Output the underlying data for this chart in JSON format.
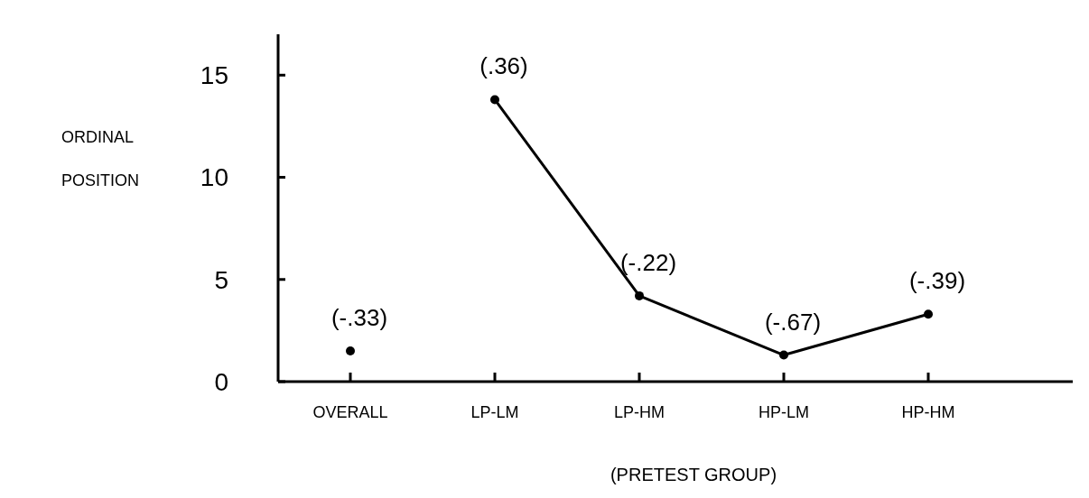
{
  "chart_data": {
    "type": "line",
    "xlabel": "(PRETEST GROUP)",
    "ylabel": "ORDINAL POSITION",
    "categories": [
      "OVERALL",
      "LP-LM",
      "LP-HM",
      "HP-LM",
      "HP-HM"
    ],
    "series": [
      {
        "type": "scatter",
        "color": "#000000",
        "values": [
          1.5,
          null,
          null,
          null,
          null
        ]
      },
      {
        "color": "#000000",
        "values": [
          null,
          13.8,
          4.2,
          1.3,
          3.3
        ]
      }
    ],
    "ylim": [
      0,
      17
    ],
    "yticks": [
      0,
      5,
      10,
      15
    ],
    "grid": false,
    "marker": "circle",
    "line_style": "solid",
    "annotations": [
      {
        "text": "(-.33)",
        "x": "OVERALL",
        "y": 1.5
      },
      {
        "text": "(.36)",
        "x": "LP-LM",
        "y": 13.8
      },
      {
        "text": "(-.22)",
        "x": "LP-HM",
        "y": 4.2
      },
      {
        "text": "(-.67)",
        "x": "HP-LM",
        "y": 1.3
      },
      {
        "text": "(-.39)",
        "x": "HP-HM",
        "y": 3.3
      }
    ]
  }
}
